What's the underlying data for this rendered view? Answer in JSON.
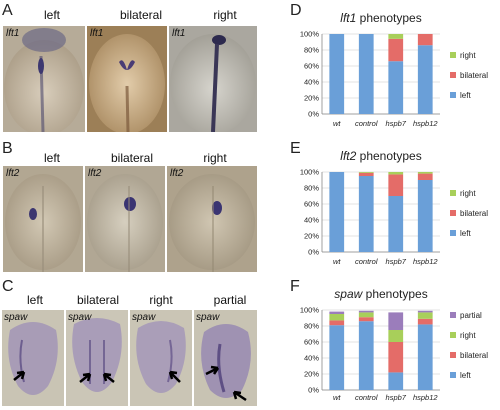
{
  "panels": {
    "A": {
      "letter": "A",
      "gene": "lft1",
      "columns": [
        "left",
        "bilateral",
        "right"
      ]
    },
    "B": {
      "letter": "B",
      "gene": "lft2",
      "columns": [
        "left",
        "bilateral",
        "right"
      ]
    },
    "C": {
      "letter": "C",
      "gene": "spaw",
      "columns": [
        "left",
        "bilateral",
        "right",
        "partial"
      ]
    },
    "D": {
      "letter": "D"
    },
    "E": {
      "letter": "E"
    },
    "F": {
      "letter": "F"
    }
  },
  "colors": {
    "left": "#6a9fd8",
    "bilateral": "#e46c68",
    "right": "#a8cf5a",
    "partial": "#9b7dbb"
  },
  "chart_data": [
    {
      "type": "bar",
      "stacked": true,
      "title_italic": "lft1",
      "title_rest": " phenotypes",
      "categories": [
        "wt",
        "control",
        "hspb7",
        "hspb12"
      ],
      "yticks": [
        "0%",
        "20%",
        "40%",
        "60%",
        "80%",
        "100%"
      ],
      "ylim": [
        0,
        100
      ],
      "series": [
        {
          "name": "left",
          "color": "#6a9fd8",
          "values": [
            100,
            100,
            66,
            86
          ]
        },
        {
          "name": "bilateral",
          "color": "#e46c68",
          "values": [
            0,
            0,
            28,
            14
          ]
        },
        {
          "name": "right",
          "color": "#a8cf5a",
          "values": [
            0,
            0,
            6,
            0
          ]
        }
      ],
      "legend": [
        "right",
        "bilateral",
        "left"
      ],
      "legend_position": "right"
    },
    {
      "type": "bar",
      "stacked": true,
      "title_italic": "lft2",
      "title_rest": " phenotypes",
      "categories": [
        "wt",
        "control",
        "hspb7",
        "hspb12"
      ],
      "yticks": [
        "0%",
        "20%",
        "40%",
        "60%",
        "80%",
        "100%"
      ],
      "ylim": [
        0,
        100
      ],
      "series": [
        {
          "name": "left",
          "color": "#6a9fd8",
          "values": [
            100,
            95,
            70,
            90
          ]
        },
        {
          "name": "bilateral",
          "color": "#e46c68",
          "values": [
            0,
            4,
            27,
            8
          ]
        },
        {
          "name": "right",
          "color": "#a8cf5a",
          "values": [
            0,
            1,
            3,
            2
          ]
        }
      ],
      "legend": [
        "right",
        "bilateral",
        "left"
      ],
      "legend_position": "right"
    },
    {
      "type": "bar",
      "stacked": true,
      "title_italic": "spaw",
      "title_rest": " phenotypes",
      "categories": [
        "wt",
        "control",
        "hspb7",
        "hspb12"
      ],
      "yticks": [
        "0%",
        "20%",
        "40%",
        "60%",
        "80%",
        "100%"
      ],
      "ylim": [
        0,
        100
      ],
      "series": [
        {
          "name": "left",
          "color": "#6a9fd8",
          "values": [
            81,
            86,
            22,
            82
          ]
        },
        {
          "name": "bilateral",
          "color": "#e46c68",
          "values": [
            6,
            5,
            38,
            7
          ]
        },
        {
          "name": "right",
          "color": "#a8cf5a",
          "values": [
            8,
            6,
            15,
            8
          ]
        },
        {
          "name": "partial",
          "color": "#9b7dbb",
          "values": [
            3,
            2,
            22,
            2
          ]
        }
      ],
      "legend": [
        "partial",
        "right",
        "bilateral",
        "left"
      ],
      "legend_position": "right"
    }
  ]
}
